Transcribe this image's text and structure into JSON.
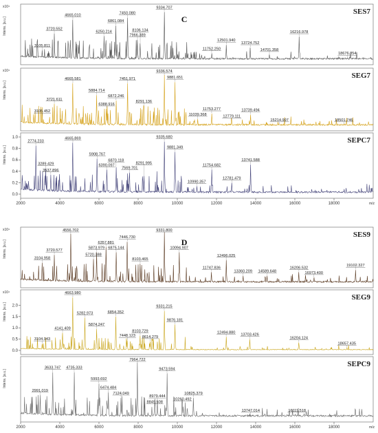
{
  "chart_data": [
    {
      "type": "line",
      "group": "C",
      "xunit": "m/z",
      "xlim": [
        2000,
        20000
      ],
      "xticks": [
        "2000",
        "4000",
        "6000",
        "8000",
        "10000",
        "12000",
        "14000",
        "16000",
        "18000"
      ],
      "panels": [
        {
          "name": "SES7",
          "color": "#555555",
          "ylabel": "Intens. [a.u.]",
          "yexp": "x10⁴",
          "ylim": [
            0,
            1.0
          ],
          "yticks": [],
          "letter": "C",
          "peaks": [
            {
              "x": 3105.811,
              "label": "3105.811",
              "y": 0.2
            },
            {
              "x": 3720.552,
              "label": "3720.552",
              "y": 0.52
            },
            {
              "x": 4665.01,
              "label": "4665.010",
              "y": 0.78
            },
            {
              "x": 6250.214,
              "label": "6250.214",
              "y": 0.47
            },
            {
              "x": 6861.084,
              "label": "6861.084",
              "y": 0.67
            },
            {
              "x": 7450.08,
              "label": "7450.080",
              "y": 0.82
            },
            {
              "x": 7966.389,
              "label": "7966.389",
              "y": 0.4
            },
            {
              "x": 8106.134,
              "label": "8106.134",
              "y": 0.33
            },
            {
              "x": 9334.707,
              "label": "9334.707",
              "y": 0.93
            },
            {
              "x": 11752.25,
              "label": "11752.250",
              "y": 0.14
            },
            {
              "x": 12501.94,
              "label": "12501.940",
              "y": 0.3
            },
            {
              "x": 13724.752,
              "label": "13724.752",
              "y": 0.25
            },
            {
              "x": 14701.358,
              "label": "14701.358",
              "y": 0.12
            },
            {
              "x": 16216.978,
              "label": "16216.978",
              "y": 0.46
            },
            {
              "x": 18676.854,
              "label": "18676.854",
              "y": 0.05
            }
          ]
        },
        {
          "name": "SEG7",
          "color": "#d4a017",
          "ylabel": "Intens. [a.u.]",
          "yexp": "x10⁴",
          "ylim": [
            0,
            1.0
          ],
          "yticks": [],
          "letter": "",
          "peaks": [
            {
              "x": 3105.452,
              "label": "3105.452",
              "y": 0.2
            },
            {
              "x": 3721.611,
              "label": "3721.611",
              "y": 0.42
            },
            {
              "x": 4665.581,
              "label": "4665.581",
              "y": 0.8
            },
            {
              "x": 5884.714,
              "label": "5884.714",
              "y": 0.58
            },
            {
              "x": 6388.916,
              "label": "6388.916",
              "y": 0.33
            },
            {
              "x": 6872.246,
              "label": "6872.246",
              "y": 0.48
            },
            {
              "x": 7451.971,
              "label": "7451.971",
              "y": 0.8
            },
            {
              "x": 8291.136,
              "label": "8291.136",
              "y": 0.38
            },
            {
              "x": 9336.574,
              "label": "9336.574",
              "y": 0.95
            },
            {
              "x": 9881.651,
              "label": "9881.651",
              "y": 0.82
            },
            {
              "x": 11039.368,
              "label": "11039.368",
              "y": 0.14
            },
            {
              "x": 11753.277,
              "label": "11753.277",
              "y": 0.24
            },
            {
              "x": 12779.111,
              "label": "12779.111",
              "y": 0.11
            },
            {
              "x": 13739.494,
              "label": "13739.494",
              "y": 0.22
            },
            {
              "x": 15214.997,
              "label": "15214.997",
              "y": 0.04
            },
            {
              "x": 18501.746,
              "label": "18501.746",
              "y": 0.04
            }
          ]
        },
        {
          "name": "SEPC7",
          "color": "#45457a",
          "ylabel": "Intens. [a.u.]",
          "yexp": "",
          "ylim": [
            0,
            1.0
          ],
          "yticks": [
            "0.0",
            "0.2",
            "0.4",
            "0.6",
            "0.8",
            "1.0"
          ],
          "letter": "",
          "peaks": [
            {
              "x": 2774.233,
              "label": "2774.233",
              "y": 0.85
            },
            {
              "x": 3289.429,
              "label": "3289.429",
              "y": 0.45
            },
            {
              "x": 3537.896,
              "label": "3537.896",
              "y": 0.34
            },
            {
              "x": 4665.869,
              "label": "4665.869",
              "y": 0.9
            },
            {
              "x": 5908.767,
              "label": "5908.767",
              "y": 0.62
            },
            {
              "x": 6390.097,
              "label": "6390.097",
              "y": 0.43
            },
            {
              "x": 6870.118,
              "label": "6870.118",
              "y": 0.47
            },
            {
              "x": 7569.701,
              "label": "7569.701",
              "y": 0.38
            },
            {
              "x": 8291.995,
              "label": "8291.995",
              "y": 0.32
            },
            {
              "x": 9335.68,
              "label": "9335.680",
              "y": 0.92
            },
            {
              "x": 9881.349,
              "label": "9881.349",
              "y": 0.74
            },
            {
              "x": 10990.357,
              "label": "10990.357",
              "y": 0.14
            },
            {
              "x": 11754.682,
              "label": "11754.682",
              "y": 0.43
            },
            {
              "x": 12781.479,
              "label": "12781.479",
              "y": 0.2
            },
            {
              "x": 13741.588,
              "label": "13741.588",
              "y": 0.52
            }
          ]
        }
      ]
    },
    {
      "type": "line",
      "group": "D",
      "xunit": "m/z",
      "xlim": [
        2000,
        20000
      ],
      "xticks": [
        "2000",
        "4000",
        "6000",
        "8000",
        "10000",
        "12000",
        "14000",
        "16000",
        "18000"
      ],
      "panels": [
        {
          "name": "SES9",
          "color": "#5a3a22",
          "ylabel": "Intens. [a.u.]",
          "yexp": "x10⁴",
          "ylim": [
            0,
            1.0
          ],
          "yticks": [],
          "letter": "D",
          "peaks": [
            {
              "x": 3104.958,
              "label": "3104.958",
              "y": 0.4
            },
            {
              "x": 3720.577,
              "label": "3720.577",
              "y": 0.55
            },
            {
              "x": 4556.702,
              "label": "4556.702",
              "y": 0.95
            },
            {
              "x": 5720.388,
              "label": "5720.388",
              "y": 0.47
            },
            {
              "x": 5873.979,
              "label": "5873.979",
              "y": 0.6
            },
            {
              "x": 6357.881,
              "label": "6357.881",
              "y": 0.7
            },
            {
              "x": 6875.144,
              "label": "6875.144",
              "y": 0.6
            },
            {
              "x": 7446.73,
              "label": "7446.730",
              "y": 0.8
            },
            {
              "x": 8103.465,
              "label": "8103.465",
              "y": 0.38
            },
            {
              "x": 9331.8,
              "label": "9331.800",
              "y": 0.98
            },
            {
              "x": 10094.907,
              "label": "10094.907",
              "y": 0.6
            },
            {
              "x": 11747.836,
              "label": "11747.836",
              "y": 0.22
            },
            {
              "x": 12496.025,
              "label": "12496.025",
              "y": 0.45
            },
            {
              "x": 13360.209,
              "label": "13360.209",
              "y": 0.15
            },
            {
              "x": 14589.648,
              "label": "14589.648",
              "y": 0.15
            },
            {
              "x": 16206.532,
              "label": "16206.532",
              "y": 0.22
            },
            {
              "x": 16973.4,
              "label": "16973.400",
              "y": 0.12
            },
            {
              "x": 19102.327,
              "label": "19102.327",
              "y": 0.26
            }
          ]
        },
        {
          "name": "SEG9",
          "color": "#c9a418",
          "ylabel": "Intens. [a.u.]",
          "yexp": "x10⁴",
          "ylim": [
            0,
            2.5
          ],
          "yticks": [
            "0.0",
            "0.5",
            "1.0",
            "1.5",
            "2.0"
          ],
          "letter": "",
          "peaks": [
            {
              "x": 3104.943,
              "label": "3104.943",
              "y": 0.3
            },
            {
              "x": 4141.409,
              "label": "4141.409",
              "y": 0.78
            },
            {
              "x": 4663.98,
              "label": "4663.980",
              "y": 2.35
            },
            {
              "x": 5282.973,
              "label": "5282.973",
              "y": 1.45
            },
            {
              "x": 5874.247,
              "label": "5874.247",
              "y": 0.95
            },
            {
              "x": 6854.352,
              "label": "6854.352",
              "y": 1.5
            },
            {
              "x": 7448.123,
              "label": "7448.123",
              "y": 0.45
            },
            {
              "x": 8103.729,
              "label": "8103.729",
              "y": 0.65
            },
            {
              "x": 8614.279,
              "label": "8614.279",
              "y": 0.4
            },
            {
              "x": 9331.215,
              "label": "9331.215",
              "y": 1.75
            },
            {
              "x": 9876.181,
              "label": "9876.181",
              "y": 1.15
            },
            {
              "x": 12494.88,
              "label": "12494.880",
              "y": 0.6
            },
            {
              "x": 13703.426,
              "label": "13703.426",
              "y": 0.5
            },
            {
              "x": 16204.124,
              "label": "16204.124",
              "y": 0.35
            },
            {
              "x": 18657.435,
              "label": "18657.435",
              "y": 0.1
            }
          ]
        },
        {
          "name": "SEPC9",
          "color": "#6a6a6a",
          "ylabel": "Intens. [a.u.]",
          "yexp": "",
          "ylim": [
            0,
            1.0
          ],
          "yticks": [],
          "letter": "",
          "peaks": [
            {
              "x": 2991.019,
              "label": "2991.019",
              "y": 0.4
            },
            {
              "x": 3633.747,
              "label": "3633.747",
              "y": 0.8
            },
            {
              "x": 4735.333,
              "label": "4735.333",
              "y": 0.8
            },
            {
              "x": 5993.692,
              "label": "5993.692",
              "y": 0.6
            },
            {
              "x": 6474.484,
              "label": "6474.484",
              "y": 0.45
            },
            {
              "x": 7124.049,
              "label": "7124.049",
              "y": 0.35
            },
            {
              "x": 7964.722,
              "label": "7964.722",
              "y": 0.97
            },
            {
              "x": 8849.508,
              "label": "8849.508",
              "y": 0.2
            },
            {
              "x": 8979.444,
              "label": "8979.444",
              "y": 0.3
            },
            {
              "x": 9473.594,
              "label": "9473.594",
              "y": 0.78
            },
            {
              "x": 10260.492,
              "label": "10260.492",
              "y": 0.25
            },
            {
              "x": 10825.379,
              "label": "10825.379",
              "y": 0.35
            },
            {
              "x": 13747.014,
              "label": "13747.014",
              "y": 0.05
            },
            {
              "x": 16111.518,
              "label": "16111.518",
              "y": 0.05
            }
          ]
        }
      ]
    }
  ]
}
